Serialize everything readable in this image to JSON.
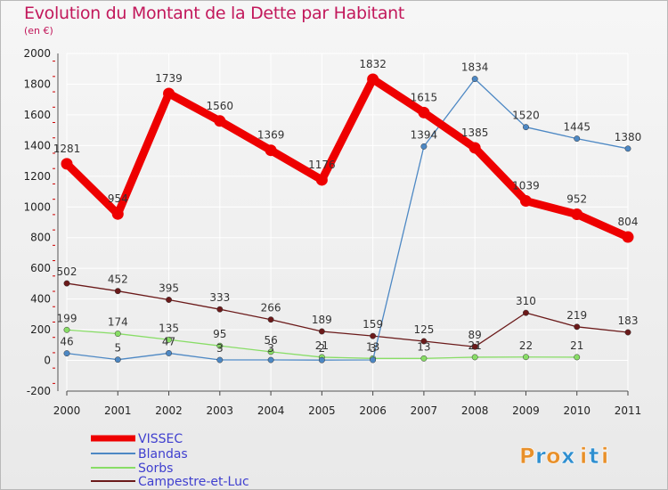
{
  "header": {
    "title": "Evolution du Montant de la Dette par Habitant",
    "subtitle": "(en €)"
  },
  "brand": {
    "letters": [
      "P",
      "r",
      "o",
      "x",
      "i",
      "t",
      "i"
    ]
  },
  "chart_data": {
    "type": "line",
    "title": "Evolution du Montant de la Dette par Habitant",
    "ylabel": "(en €)",
    "xlabel": "",
    "ylim": [
      -200,
      2000
    ],
    "yticks": [
      -200,
      0,
      200,
      400,
      600,
      800,
      1000,
      1200,
      1400,
      1600,
      1800,
      2000
    ],
    "categories": [
      "2000",
      "2001",
      "2002",
      "2003",
      "2004",
      "2005",
      "2006",
      "2007",
      "2008",
      "2009",
      "2010",
      "2011"
    ],
    "grid": true,
    "legend_position": "bottom-left",
    "series": [
      {
        "name": "VISSEC",
        "color": "#ee0000",
        "values": [
          1281,
          954,
          1739,
          1560,
          1369,
          1176,
          1832,
          1615,
          1385,
          1039,
          952,
          804
        ]
      },
      {
        "name": "Blandas",
        "color": "#4d88c4",
        "values": [
          46,
          5,
          47,
          3,
          3,
          2,
          3,
          1394,
          1834,
          1520,
          1445,
          1380
        ]
      },
      {
        "name": "Sorbs",
        "color": "#88dd66",
        "values": [
          199,
          174,
          135,
          95,
          56,
          21,
          13,
          13,
          21,
          22,
          21,
          null
        ]
      },
      {
        "name": "Campestre-et-Luc",
        "color": "#6b1a1a",
        "values": [
          502,
          452,
          395,
          333,
          266,
          189,
          159,
          125,
          89,
          310,
          219,
          183
        ]
      }
    ]
  }
}
